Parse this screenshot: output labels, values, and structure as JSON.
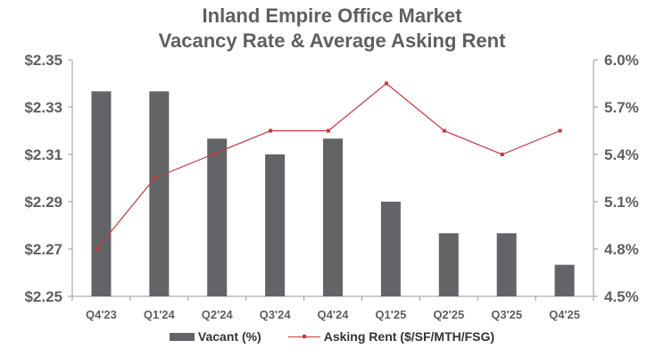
{
  "chart_data": {
    "type": "bar+line",
    "title": [
      "Inland Empire Office Market",
      "Vacancy Rate & Average Asking Rent"
    ],
    "categories": [
      "Q4'23",
      "Q1'24",
      "Q2'24",
      "Q3'24",
      "Q4'24",
      "Q1'25",
      "Q2'25",
      "Q3'25",
      "Q4'25"
    ],
    "series": [
      {
        "name": "Vacant (%)",
        "type": "bar",
        "axis": "right",
        "color": "#636467",
        "values": [
          5.8,
          5.8,
          5.5,
          5.4,
          5.5,
          5.1,
          4.9,
          4.9,
          4.7
        ]
      },
      {
        "name": "Asking Rent ($/SF/MTH/FSG)",
        "type": "line",
        "axis": "left",
        "color": "#c0393f",
        "values": [
          2.27,
          2.3,
          2.31,
          2.32,
          2.32,
          2.34,
          2.32,
          2.31,
          2.32
        ]
      }
    ],
    "left_axis": {
      "ylim": [
        2.25,
        2.35
      ],
      "ticks": [
        "$2.35",
        "$2.33",
        "$2.31",
        "$2.29",
        "$2.27",
        "$2.25"
      ]
    },
    "right_axis": {
      "ylim": [
        4.5,
        6.0
      ],
      "ticks": [
        "6.0%",
        "5.7%",
        "5.4%",
        "5.1%",
        "4.8%",
        "4.5%"
      ]
    },
    "grid": false,
    "legend": "bottom"
  }
}
